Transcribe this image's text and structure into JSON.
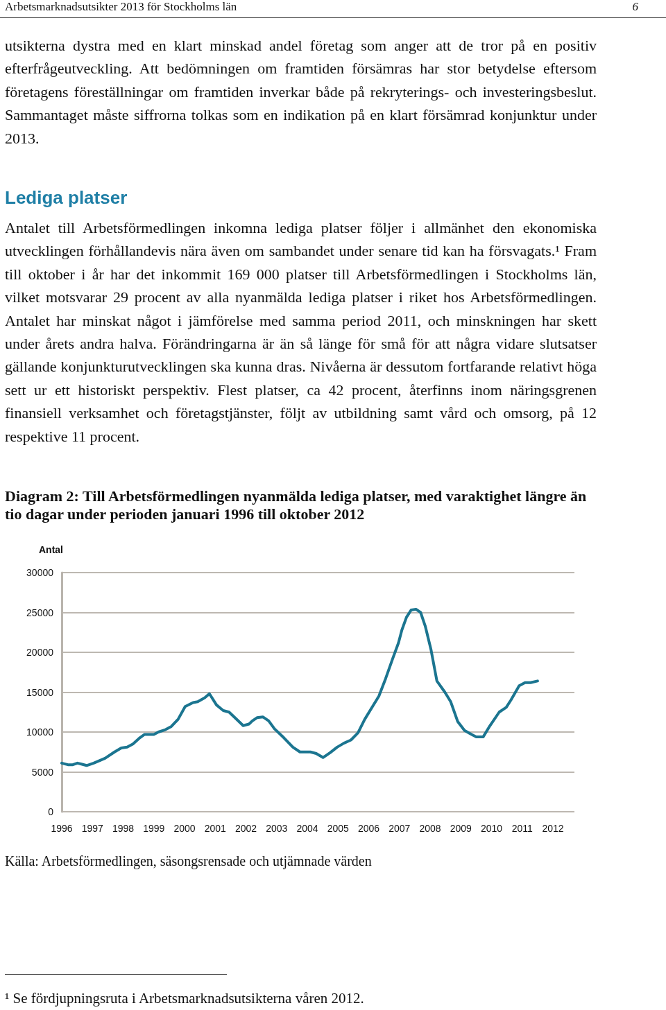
{
  "chart_data": {
    "type": "line",
    "title": "Diagram 2: Till Arbetsförmedlingen nyanmälda lediga platser, med varaktighet längre än tio dagar under perioden januari 1996 till oktober 2012",
    "ylabel": "Antal",
    "annotations": [
      "Arbetsmarknadsutsikter 2013 för Stockholms län",
      "6",
      "utsikterna dystra med en klart minskad andel företag som anger att de tror på en positiv efterfrågeutveckling. Att bedömningen om framtiden försämras har stor betydelse eftersom företagens föreställningar om framtiden inverkar både på rekryterings- och investeringsbeslut. Sammantaget måste siffrorna tolkas som en indikation på en klart försämrad konjunktur under 2013.",
      "Lediga platser",
      "Antalet till Arbetsförmedlingen inkomna lediga platser följer i allmänhet den ekonomiska utvecklingen förhållandevis nära även om sambandet under senare tid kan ha försvagats.¹ Fram till oktober i år har det inkommit 169 000 platser till Arbetsförmedlingen i Stockholms län, vilket motsvarar 29 procent av alla nyanmälda lediga platser i riket hos Arbetsförmedlingen. Antalet har minskat något i jämförelse med samma period 2011, och minskningen har skett under årets andra halva. Förändringarna är än så länge för små för att några vidare slutsatser gällande konjunkturutvecklingen ska kunna dras. Nivåerna är dessutom fortfarande relativt höga sett ur ett historiskt perspektiv. Flest platser, ca 42 procent, återfinns inom näringsgrenen finansiell verksamhet och företagstjänster, följt av utbildning samt vård och omsorg, på 12 respektive 11 procent.",
      "Källa: Arbetsförmedlingen, säsongsrensade och utjämnade värden",
      "¹ Se fördjupningsruta i Arbetsmarknadsutsikterna våren 2012."
    ],
    "series": [
      {
        "color": "#1b7590",
        "x": [
          1996.0,
          1996.2,
          1996.36,
          1996.51,
          1996.62,
          1996.81,
          1997.04,
          1997.41,
          1997.72,
          1997.94,
          1998.13,
          1998.32,
          1998.55,
          1998.7,
          1999.0,
          1999.15,
          1999.38,
          1999.57,
          1999.79,
          2000.02,
          2000.28,
          2000.43,
          2000.66,
          2000.81,
          2001.04,
          2001.26,
          2001.45,
          2001.64,
          2001.91,
          2002.1,
          2002.21,
          2002.36,
          2002.55,
          2002.74,
          2002.93,
          2003.23,
          2003.53,
          2003.76,
          2003.98,
          2004.1,
          2004.29,
          2004.51,
          2004.74,
          2004.97,
          2005.19,
          2005.42,
          2005.65,
          2005.87,
          2006.14,
          2006.33,
          2006.55,
          2006.78,
          2006.97,
          2007.08,
          2007.23,
          2007.38,
          2007.54,
          2007.69,
          2007.84,
          2008.03,
          2008.22,
          2008.48,
          2008.67,
          2008.9,
          2009.12,
          2009.35,
          2009.5,
          2009.73,
          2009.95,
          2010.25,
          2010.48,
          2010.63,
          2010.9,
          2011.09,
          2011.27,
          2011.5
        ],
        "values": [
          6100,
          5900,
          5900,
          6100,
          6000,
          5800,
          6100,
          6700,
          7500,
          8000,
          8100,
          8500,
          9300,
          9700,
          9700,
          10000,
          10300,
          10700,
          11600,
          13200,
          13700,
          13800,
          14300,
          14800,
          13400,
          12700,
          12500,
          11800,
          10800,
          11000,
          11400,
          11800,
          11900,
          11400,
          10400,
          9300,
          8100,
          7500,
          7500,
          7500,
          7300,
          6800,
          7400,
          8100,
          8600,
          9000,
          9900,
          11600,
          13300,
          14500,
          16700,
          19200,
          21200,
          22800,
          24400,
          25300,
          25400,
          25000,
          23300,
          20300,
          16400,
          15000,
          13800,
          11300,
          10200,
          9700,
          9400,
          9400,
          10800,
          12500,
          13100,
          14000,
          15800,
          16200,
          16200,
          16400
        ]
      }
    ],
    "xlim": [
      1996,
      2012.7
    ],
    "xticks": [
      1996,
      1997,
      1998,
      1999,
      2000,
      2001,
      2002,
      2003,
      2004,
      2005,
      2006,
      2007,
      2008,
      2009,
      2010,
      2011,
      2012
    ],
    "ylim": [
      0,
      30000
    ],
    "yticks": [
      0,
      5000,
      10000,
      15000,
      20000,
      25000,
      30000
    ],
    "grid": "y",
    "marker": "none",
    "line_style": "solid"
  }
}
